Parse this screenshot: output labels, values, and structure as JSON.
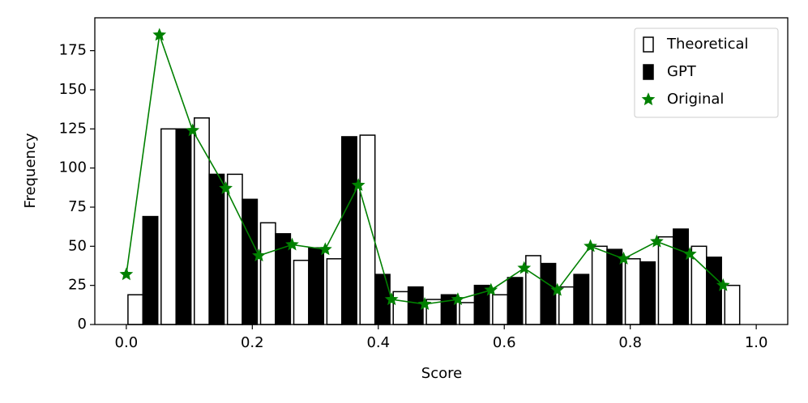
{
  "chart_data": {
    "type": "histogram",
    "xlabel": "Score",
    "ylabel": "Frequency",
    "bins": [
      0,
      0.0526,
      0.1053,
      0.1579,
      0.2105,
      0.2632,
      0.3158,
      0.3684,
      0.4211,
      0.4737,
      0.5263,
      0.5789,
      0.6316,
      0.6842,
      0.7368,
      0.7895,
      0.8421,
      0.8947,
      0.9474,
      1.0
    ],
    "series": [
      {
        "name": "Theoretical",
        "color": "#ffffff",
        "edgecolor": "#000000",
        "values": [
          19,
          125,
          132,
          96,
          65,
          41,
          42,
          121,
          21,
          16,
          14,
          19,
          44,
          24,
          50,
          42,
          56,
          50,
          25
        ]
      },
      {
        "name": "GPT",
        "color": "#000000",
        "edgecolor": "#000000",
        "values": [
          69,
          125,
          96,
          80,
          58,
          49,
          120,
          32,
          24,
          19,
          25,
          30,
          39,
          32,
          48,
          40,
          61,
          43,
          0
        ]
      },
      {
        "name": "Original",
        "type": "line",
        "marker": "star",
        "color": "#008000",
        "x": [
          0,
          0.0526,
          0.1053,
          0.1579,
          0.2105,
          0.2632,
          0.3158,
          0.3684,
          0.4211,
          0.4737,
          0.5263,
          0.5789,
          0.6316,
          0.6842,
          0.7368,
          0.7895,
          0.8421,
          0.8947,
          0.9474
        ],
        "values": [
          32,
          185,
          124,
          87,
          44,
          51,
          48,
          89,
          16,
          13,
          16,
          22,
          36,
          22,
          50,
          42,
          53,
          45,
          25
        ]
      }
    ],
    "xlim": [
      -0.05,
      1.05
    ],
    "ylim": [
      0,
      196
    ],
    "xticks": [
      {
        "value": 0,
        "label": "0.0"
      },
      0.2,
      0.4,
      0.6,
      0.8,
      {
        "value": 1,
        "label": "1.0"
      }
    ],
    "yticks": [
      0,
      25,
      50,
      75,
      100,
      125,
      150,
      175
    ],
    "legend": "upper right",
    "grid": false
  }
}
